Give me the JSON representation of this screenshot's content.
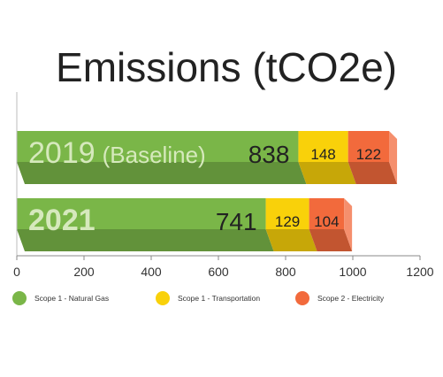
{
  "chart_data": {
    "type": "bar",
    "orientation": "horizontal",
    "stacked": true,
    "style": "3d",
    "title": "Emissions (tCO2e)",
    "xlabel": "",
    "ylabel": "",
    "xlim": [
      0,
      1200
    ],
    "ticks": [
      0,
      200,
      400,
      600,
      800,
      1000,
      1200
    ],
    "grid": false,
    "legend_position": "bottom",
    "categories": [
      {
        "label": "2019",
        "sublabel": "(Baseline)",
        "bold": false
      },
      {
        "label": "2021",
        "sublabel": "",
        "bold": true
      }
    ],
    "series": [
      {
        "name": "Scope 1 - Natural Gas",
        "color": "#7ab648",
        "values": [
          838,
          741
        ]
      },
      {
        "name": "Scope 1 - Transportation",
        "color": "#f9d10a",
        "values": [
          148,
          129
        ]
      },
      {
        "name": "Scope 2 - Electricity",
        "color": "#f26a3c",
        "values": [
          122,
          104
        ]
      }
    ]
  }
}
